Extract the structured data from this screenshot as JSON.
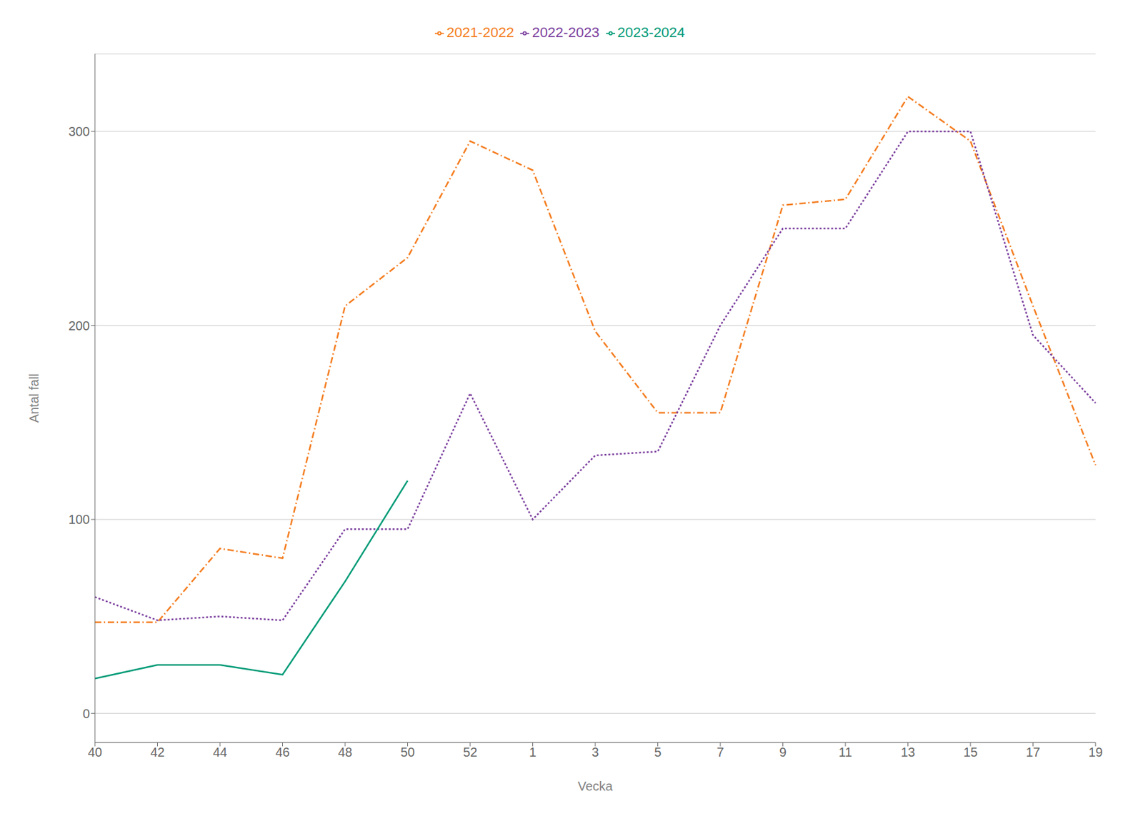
{
  "chart_data": {
    "type": "line",
    "xlabel": "Vecka",
    "ylabel": "Antal fall",
    "categories": [
      "40",
      "42",
      "44",
      "46",
      "48",
      "50",
      "52",
      "1",
      "3",
      "5",
      "7",
      "9",
      "11",
      "13",
      "15",
      "17",
      "19"
    ],
    "series": [
      {
        "name": "2021-2022",
        "color": "#F47D20",
        "line_style": "dashdot",
        "values": [
          47,
          47,
          85,
          80,
          210,
          235,
          295,
          280,
          197,
          155,
          155,
          262,
          265,
          318,
          295,
          210,
          128
        ]
      },
      {
        "name": "2022-2023",
        "color": "#7B3F9E",
        "line_style": "dotted",
        "values": [
          60,
          48,
          50,
          48,
          95,
          95,
          165,
          100,
          133,
          135,
          200,
          250,
          250,
          300,
          300,
          195,
          160
        ]
      },
      {
        "name": "2023-2024",
        "color": "#009B77",
        "line_style": "solid",
        "values": [
          18,
          25,
          25,
          20,
          68,
          120,
          null,
          null,
          null,
          null,
          null,
          null,
          null,
          null,
          null,
          null,
          null
        ]
      }
    ],
    "ylim": [
      -15,
      340
    ],
    "yticks": [
      0,
      100,
      200,
      300
    ],
    "grid": true,
    "legend": "top"
  }
}
